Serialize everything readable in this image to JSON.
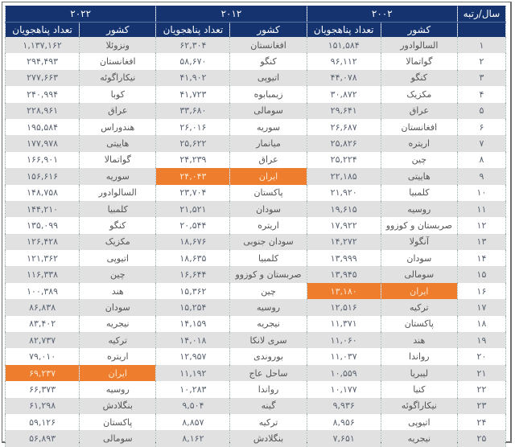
{
  "table": {
    "corner_label": "سال/رتبه",
    "years": [
      "۲۰۰۲",
      "۲۰۱۲",
      "۲۰۲۲"
    ],
    "sub_headers": {
      "country": "کشور",
      "count": "تعداد پناهجویان"
    },
    "highlight_color": "#ee7d2e",
    "header_color": "#14336f",
    "rows": [
      {
        "rank": "۱",
        "c2002": "السالوادور",
        "n2002": "۱۵۱,۵۸۴",
        "c2012": "افغانستان",
        "n2012": "۶۲,۳۰۴",
        "c2022": "ونزوئلا",
        "n2022": "۱,۱۳۷,۱۶۲"
      },
      {
        "rank": "۲",
        "c2002": "گواتمالا",
        "n2002": "۹۶,۱۱۲",
        "c2012": "کنگو",
        "n2012": "۵۸,۶۷۰",
        "c2022": "افغانستان",
        "n2022": "۲۹۴,۴۹۳"
      },
      {
        "rank": "۳",
        "c2002": "کنگو",
        "n2002": "۴۴,۰۷۸",
        "c2012": "اتیوپی",
        "n2012": "۴۱,۹۰۲",
        "c2022": "نیکاراگوئه",
        "n2022": "۲۷۷,۶۶۳"
      },
      {
        "rank": "۴",
        "c2002": "مکزیک",
        "n2002": "۳۰,۸۷۲",
        "c2012": "زیمبابوه",
        "n2012": "۴۱,۷۲۳",
        "c2022": "کوبا",
        "n2022": "۲۴۰,۹۹۴"
      },
      {
        "rank": "۵",
        "c2002": "عراق",
        "n2002": "۲۹,۶۴۱",
        "c2012": "سومالی",
        "n2012": "۳۳,۶۸۰",
        "c2022": "عراق",
        "n2022": "۲۲۸,۹۶۱"
      },
      {
        "rank": "۶",
        "c2002": "افغانستان",
        "n2002": "۲۶,۶۸۷",
        "c2012": "سوریه",
        "n2012": "۲۶,۰۱۶",
        "c2022": "هندوراس",
        "n2022": "۱۹۵,۵۸۴"
      },
      {
        "rank": "۷",
        "c2002": "اریتره",
        "n2002": "۲۵,۸۲۶",
        "c2012": "میانمار",
        "n2012": "۲۵,۶۲۲",
        "c2022": "هاییتی",
        "n2022": "۱۷۷,۹۷۸"
      },
      {
        "rank": "۸",
        "c2002": "چین",
        "n2002": "۲۵,۲۲۴",
        "c2012": "عراق",
        "n2012": "۲۴,۲۳۹",
        "c2022": "گواتمالا",
        "n2022": "۱۶۶,۹۰۱"
      },
      {
        "rank": "۹",
        "c2002": "هاییتی",
        "n2002": "۲۲,۱۸۵",
        "c2012": "ایران",
        "n2012": "۲۴,۰۴۳",
        "c2022": "سوریه",
        "n2022": "۱۵۶,۶۱۶",
        "hl": "2012"
      },
      {
        "rank": "۱۰",
        "c2002": "کلمبیا",
        "n2002": "۲۱,۹۲۰",
        "c2012": "پاکستان",
        "n2012": "۲۳,۷۰۴",
        "c2022": "السالوادور",
        "n2022": "۱۴۸,۷۵۸"
      },
      {
        "rank": "۱۱",
        "c2002": "روسیه",
        "n2002": "۱۹,۶۱۵",
        "c2012": "سودان",
        "n2012": "۲۱,۵۲۱",
        "c2022": "کلمبیا",
        "n2022": "۱۴۴,۲۱۰"
      },
      {
        "rank": "۱۲",
        "c2002": "صربستان و کوزوو",
        "n2002": "۱۷,۹۲۲",
        "c2012": "اریتره",
        "n2012": "۲۰,۵۴۴",
        "c2022": "کنگو",
        "n2022": "۱۳۵,۰۹۹"
      },
      {
        "rank": "۱۳",
        "c2002": "آنگولا",
        "n2002": "۱۴,۲۷۲",
        "c2012": "سودان جنوبی",
        "n2012": "۱۸,۶۷۶",
        "c2022": "مکزیک",
        "n2022": "۱۲۶,۴۲۸"
      },
      {
        "rank": "۱۴",
        "c2002": "سودان",
        "n2002": "۱۳,۹۹۹",
        "c2012": "کلمبیا",
        "n2012": "۱۸,۶۳۵",
        "c2022": "اتیوپی",
        "n2022": "۱۲۱,۳۶۲"
      },
      {
        "rank": "۱۵",
        "c2002": "سومالی",
        "n2002": "۱۳,۹۴۵",
        "c2012": "صربستان و کوزوو",
        "n2012": "۱۶,۶۴۴",
        "c2022": "چین",
        "n2022": "۱۱۶,۳۳۸"
      },
      {
        "rank": "۱۶",
        "c2002": "ایران",
        "n2002": "۱۳,۱۸۰",
        "c2012": "چین",
        "n2012": "۱۵,۳۶۲",
        "c2022": "هند",
        "n2022": "۱۰۰,۳۸۹",
        "hl": "2002"
      },
      {
        "rank": "۱۷",
        "c2002": "ترکیه",
        "n2002": "۱۲,۵۱۶",
        "c2012": "روسیه",
        "n2012": "۱۵,۲۵۴",
        "c2022": "سودان",
        "n2022": "۸۶,۸۳۸"
      },
      {
        "rank": "۱۸",
        "c2002": "پاکستان",
        "n2002": "۱۱,۳۷۱",
        "c2012": "نیجریه",
        "n2012": "۱۴,۱۵۹",
        "c2022": "نیجریه",
        "n2022": "۸۳,۴۰۲"
      },
      {
        "rank": "۱۹",
        "c2002": "هند",
        "n2002": "۱۱,۰۶۰",
        "c2012": "سری لانکا",
        "n2012": "۱۴,۰۱۸",
        "c2022": "ترکیه",
        "n2022": "۸۲,۷۳۷"
      },
      {
        "rank": "۲۰",
        "c2002": "رواندا",
        "n2002": "۱۱,۰۳۷",
        "c2012": "بوروندی",
        "n2012": "۱۲,۹۵۷",
        "c2022": "اریتره",
        "n2022": "۷۹,۰۱۰"
      },
      {
        "rank": "۲۱",
        "c2002": "لیبریا",
        "n2002": "۱۰,۵۵۹",
        "c2012": "ساحل عاج",
        "n2012": "۱۱,۱۹۲",
        "c2022": "ایران",
        "n2022": "۶۹,۲۳۷",
        "hl": "2022"
      },
      {
        "rank": "۲۲",
        "c2002": "کنیا",
        "n2002": "۱۰,۱۷۷",
        "c2012": "رواندا",
        "n2012": "۱۰,۲۸۳",
        "c2022": "روسیه",
        "n2022": "۶۶,۳۷۳"
      },
      {
        "rank": "۲۳",
        "c2002": "نیکاراگوئه",
        "n2002": "۹,۹۳۶",
        "c2012": "گینه",
        "n2012": "۹,۵۰۴",
        "c2022": "بنگلادش",
        "n2022": "۶۱,۲۹۸"
      },
      {
        "rank": "۲۴",
        "c2002": "اتیوپی",
        "n2002": "۸,۹۵۶",
        "c2012": "ترکیه",
        "n2012": "۸,۸۵۷",
        "c2022": "پاکستان",
        "n2022": "۵۹,۱۲۶"
      },
      {
        "rank": "۲۵",
        "c2002": "نیجریه",
        "n2002": "۷,۶۵۱",
        "c2012": "بنگلادش",
        "n2012": "۸,۱۶۲",
        "c2022": "سومالی",
        "n2022": "۵۶,۸۹۳"
      }
    ]
  }
}
